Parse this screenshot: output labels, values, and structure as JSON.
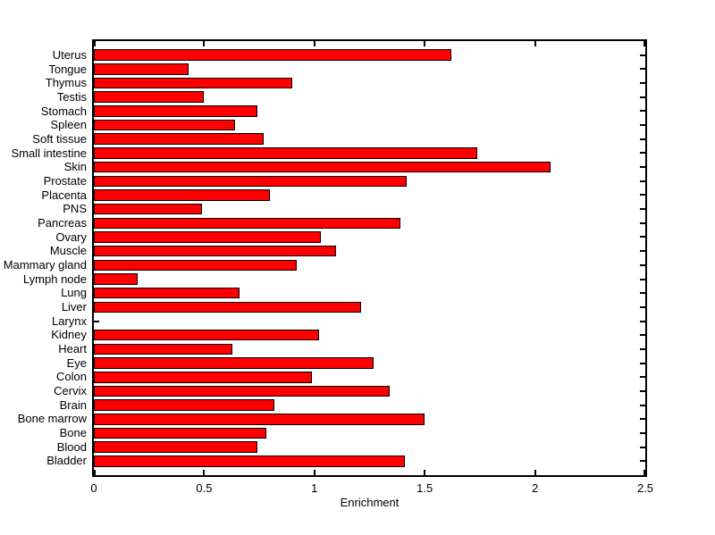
{
  "figure": {
    "background_color": "#ffffff",
    "axis_color": "#000000",
    "bar_fill_color": "#ff0000",
    "bar_edge_color": "#000000"
  },
  "chart_data": {
    "type": "bar",
    "orientation": "horizontal",
    "title": "",
    "xlabel": "Enrichment",
    "ylabel": "",
    "xlim": [
      0,
      2.5
    ],
    "x_tick_values": [
      0,
      0.5,
      1,
      1.5,
      2,
      2.5
    ],
    "x_tick_labels": [
      "0",
      "0.5",
      "1",
      "1.5",
      "2",
      "2.5"
    ],
    "grid": false,
    "legend_position": "none",
    "categories_order": "top-to-bottom",
    "categories": [
      "Uterus",
      "Tongue",
      "Thymus",
      "Testis",
      "Stomach",
      "Spleen",
      "Soft tissue",
      "Small intestine",
      "Skin",
      "Prostate",
      "Placenta",
      "PNS",
      "Pancreas",
      "Ovary",
      "Muscle",
      "Mammary gland",
      "Lymph node",
      "Lung",
      "Liver",
      "Larynx",
      "Kidney",
      "Heart",
      "Eye",
      "Colon",
      "Cervix",
      "Brain",
      "Bone marrow",
      "Bone",
      "Blood",
      "Bladder"
    ],
    "values": [
      1.62,
      0.43,
      0.9,
      0.5,
      0.74,
      0.64,
      0.77,
      1.74,
      2.07,
      1.42,
      0.8,
      0.49,
      1.39,
      1.03,
      1.1,
      0.92,
      0.2,
      0.66,
      1.21,
      0,
      1.02,
      0.63,
      1.27,
      0.99,
      1.34,
      0.82,
      1.5,
      0.78,
      0.74,
      1.41
    ]
  }
}
